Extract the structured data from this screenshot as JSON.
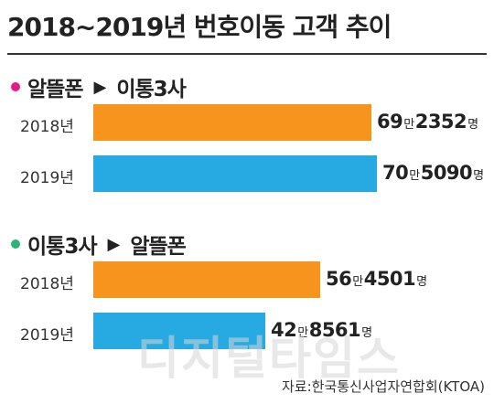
{
  "chart_data": {
    "type": "bar",
    "orientation": "horizontal",
    "title": "2018~2019년 번호이동 고객 추이",
    "categories": [
      "2018년",
      "2019년"
    ],
    "unit_big": "만",
    "unit_person": "명",
    "series": [
      {
        "name": "알뜰폰 ► 이통3사",
        "from": "알뜰폰",
        "to": "이통3사",
        "dot_color": "#e6198a",
        "values": [
          692352,
          705090
        ],
        "value_parts": [
          {
            "man": "69",
            "rest": "2352"
          },
          {
            "man": "70",
            "rest": "5090"
          }
        ]
      },
      {
        "name": "이통3사 ► 알뜰폰",
        "from": "이통3사",
        "to": "알뜰폰",
        "dot_color": "#2bb37a",
        "values": [
          564501,
          428561
        ],
        "value_parts": [
          {
            "man": "56",
            "rest": "4501"
          },
          {
            "man": "42",
            "rest": "8561"
          }
        ]
      }
    ],
    "bar_colors": {
      "2018년": "#f7941d",
      "2019년": "#27aae1"
    },
    "xlim": [
      0,
      705090
    ],
    "grid": false,
    "legend": "none"
  },
  "arrow_icon": "right-triangle-icon",
  "watermark": "디지털타임스",
  "source": "자료:한국통신사업자연합회(KTOA)"
}
